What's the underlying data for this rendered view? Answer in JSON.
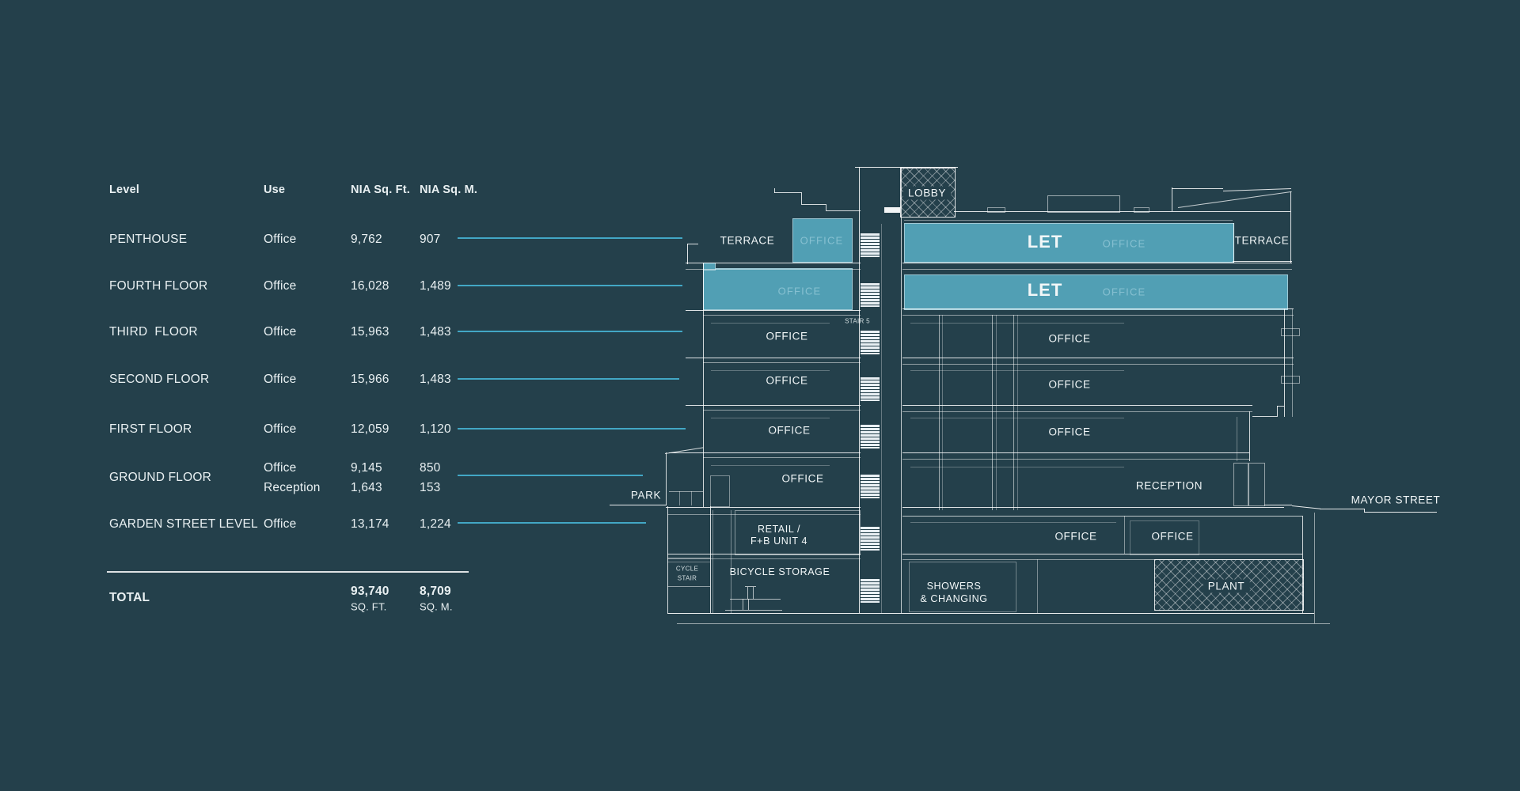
{
  "colors": {
    "background": "#24404b",
    "highlight_teal": "#519fb4",
    "leader_cyan": "#42a7c5",
    "line_white": "#ffffff"
  },
  "table": {
    "headers": {
      "level": "Level",
      "use": "Use",
      "sqft": "NIA Sq. Ft.",
      "sqm": "NIA Sq. M."
    },
    "rows": [
      {
        "level": "PENTHOUSE",
        "use": "Office",
        "sqft": "9,762",
        "sqm": "907"
      },
      {
        "level": "FOURTH FLOOR",
        "use": "Office",
        "sqft": "16,028",
        "sqm": "1,489"
      },
      {
        "level": "THIRD  FLOOR",
        "use": "Office",
        "sqft": "15,963",
        "sqm": "1,483"
      },
      {
        "level": "SECOND FLOOR",
        "use": "Office",
        "sqft": "15,966",
        "sqm": "1,483"
      },
      {
        "level": "FIRST FLOOR",
        "use": "Office",
        "sqft": "12,059",
        "sqm": "1,120"
      },
      {
        "level": "GROUND FLOOR",
        "use": "Office",
        "sqft": "9,145",
        "sqm": "850",
        "use2": "Reception",
        "sqft2": "1,643",
        "sqm2": "153"
      },
      {
        "level": "GARDEN STREET LEVEL",
        "use": "Office",
        "sqft": "13,174",
        "sqm": "1,224"
      }
    ],
    "total": {
      "label": "TOTAL",
      "sqft": "93,740",
      "sqft_unit": "SQ. FT.",
      "sqm": "8,709",
      "sqm_unit": "SQ. M."
    }
  },
  "section": {
    "lobby": "LOBBY",
    "terrace": "TERRACE",
    "office": "OFFICE",
    "let": "LET",
    "stair5": "STAIR 5",
    "park": "PARK",
    "mayor_street": "MAYOR STREET",
    "reception": "RECEPTION",
    "retail_line1": "RETAIL /",
    "retail_line2": "F+B UNIT 4",
    "cycle_stair_line1": "CYCLE",
    "cycle_stair_line2": "STAIR",
    "bicycle_storage": "BICYCLE STORAGE",
    "showers_line1": "SHOWERS",
    "showers_line2": "& CHANGING",
    "plant": "PLANT"
  }
}
